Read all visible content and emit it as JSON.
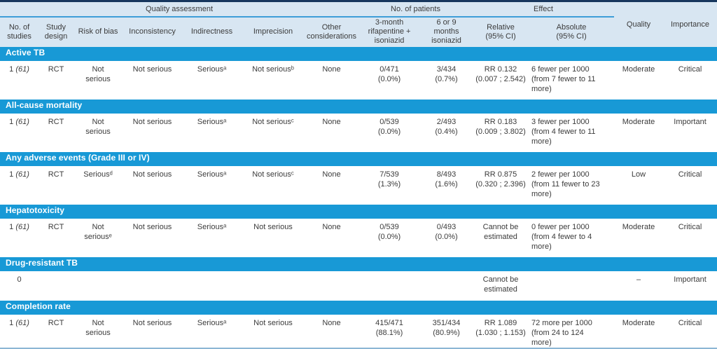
{
  "table": {
    "group_headers": {
      "quality_assessment": "Quality assessment",
      "no_of_patients": "No. of patients",
      "effect": "Effect"
    },
    "columns": [
      "No. of\nstudies",
      "Study\ndesign",
      "Risk of bias",
      "Inconsistency",
      "Indirectness",
      "Imprecision",
      "Other\nconsiderations",
      "3-month\nrifapentine +\nisoniazid",
      "6 or 9\nmonths\nisoniazid",
      "Relative\n(95% CI)",
      "Absolute\n(95% CI)",
      "Quality",
      "Importance"
    ],
    "sections": [
      {
        "title": "Active TB",
        "cells": [
          {
            "main": "1 ",
            "italic": "(61)"
          },
          "RCT",
          "Not\nserious",
          "Not serious",
          "Seriousᵃ",
          "Not seriousᵇ",
          "None",
          "0/471\n(0.0%)",
          "3/434\n(0.7%)",
          "RR 0.132\n(0.007 ; 2.542)",
          "6 fewer per 1000\n(from 7 fewer to 11\nmore)",
          "Moderate",
          "Critical"
        ]
      },
      {
        "title": "All-cause mortality",
        "cells": [
          {
            "main": "1 ",
            "italic": "(61)"
          },
          "RCT",
          "Not\nserious",
          "Not serious",
          "Seriousᵃ",
          "Not seriousᶜ",
          "None",
          "0/539\n(0.0%)",
          "2/493\n(0.4%)",
          "RR 0.183\n(0.009 ; 3.802)",
          "3 fewer per 1000\n(from 4 fewer to 11\nmore)",
          "Moderate",
          "Important"
        ]
      },
      {
        "title": "Any adverse events (Grade III or IV)",
        "cells": [
          {
            "main": "1 ",
            "italic": "(61)"
          },
          "RCT",
          "Seriousᵈ",
          "Not serious",
          "Seriousᵃ",
          "Not seriousᶜ",
          "None",
          "7/539\n(1.3%)",
          "8/493\n(1.6%)",
          "RR 0.875\n(0.320 ; 2.396)",
          "2 fewer per 1000\n(from 11 fewer to 23\nmore)",
          "Low",
          "Critical"
        ]
      },
      {
        "title": "Hepatotoxicity",
        "cells": [
          {
            "main": "1 ",
            "italic": "(61)"
          },
          "RCT",
          "Not\nseriousᵉ",
          "Not serious",
          "Seriousᵃ",
          "Not serious",
          "None",
          "0/539\n(0.0%)",
          "0/493\n(0.0%)",
          "Cannot be\nestimated",
          "0 fewer per 1000\n(from 4 fewer to 4\nmore)",
          "Moderate",
          "Critical"
        ]
      },
      {
        "title": "Drug-resistant TB",
        "cells": [
          "0",
          "",
          "",
          "",
          "",
          "",
          "",
          "",
          "",
          "Cannot be\nestimated",
          "",
          "–",
          "Important"
        ]
      },
      {
        "title": "Completion rate",
        "cells": [
          {
            "main": "1 ",
            "italic": "(61)"
          },
          "RCT",
          "Not\nserious",
          "Not serious",
          "Seriousᵃ",
          "Not serious",
          "None",
          "415/471\n(88.1%)",
          "351/434\n(80.9%)",
          "RR 1.089\n(1.030 ; 1.153)",
          "72 more per 1000\n(from 24 to 124\nmore)",
          "Moderate",
          "Critical"
        ]
      }
    ]
  },
  "colors": {
    "band_blue": "#1899d6",
    "header_bg": "#d8e6f2",
    "top_border": "#17365d",
    "group_underline": "#3e9ed8",
    "bottom_line": "#8cb6d4",
    "text": "#3b3b3b",
    "band_text": "#ffffff"
  }
}
